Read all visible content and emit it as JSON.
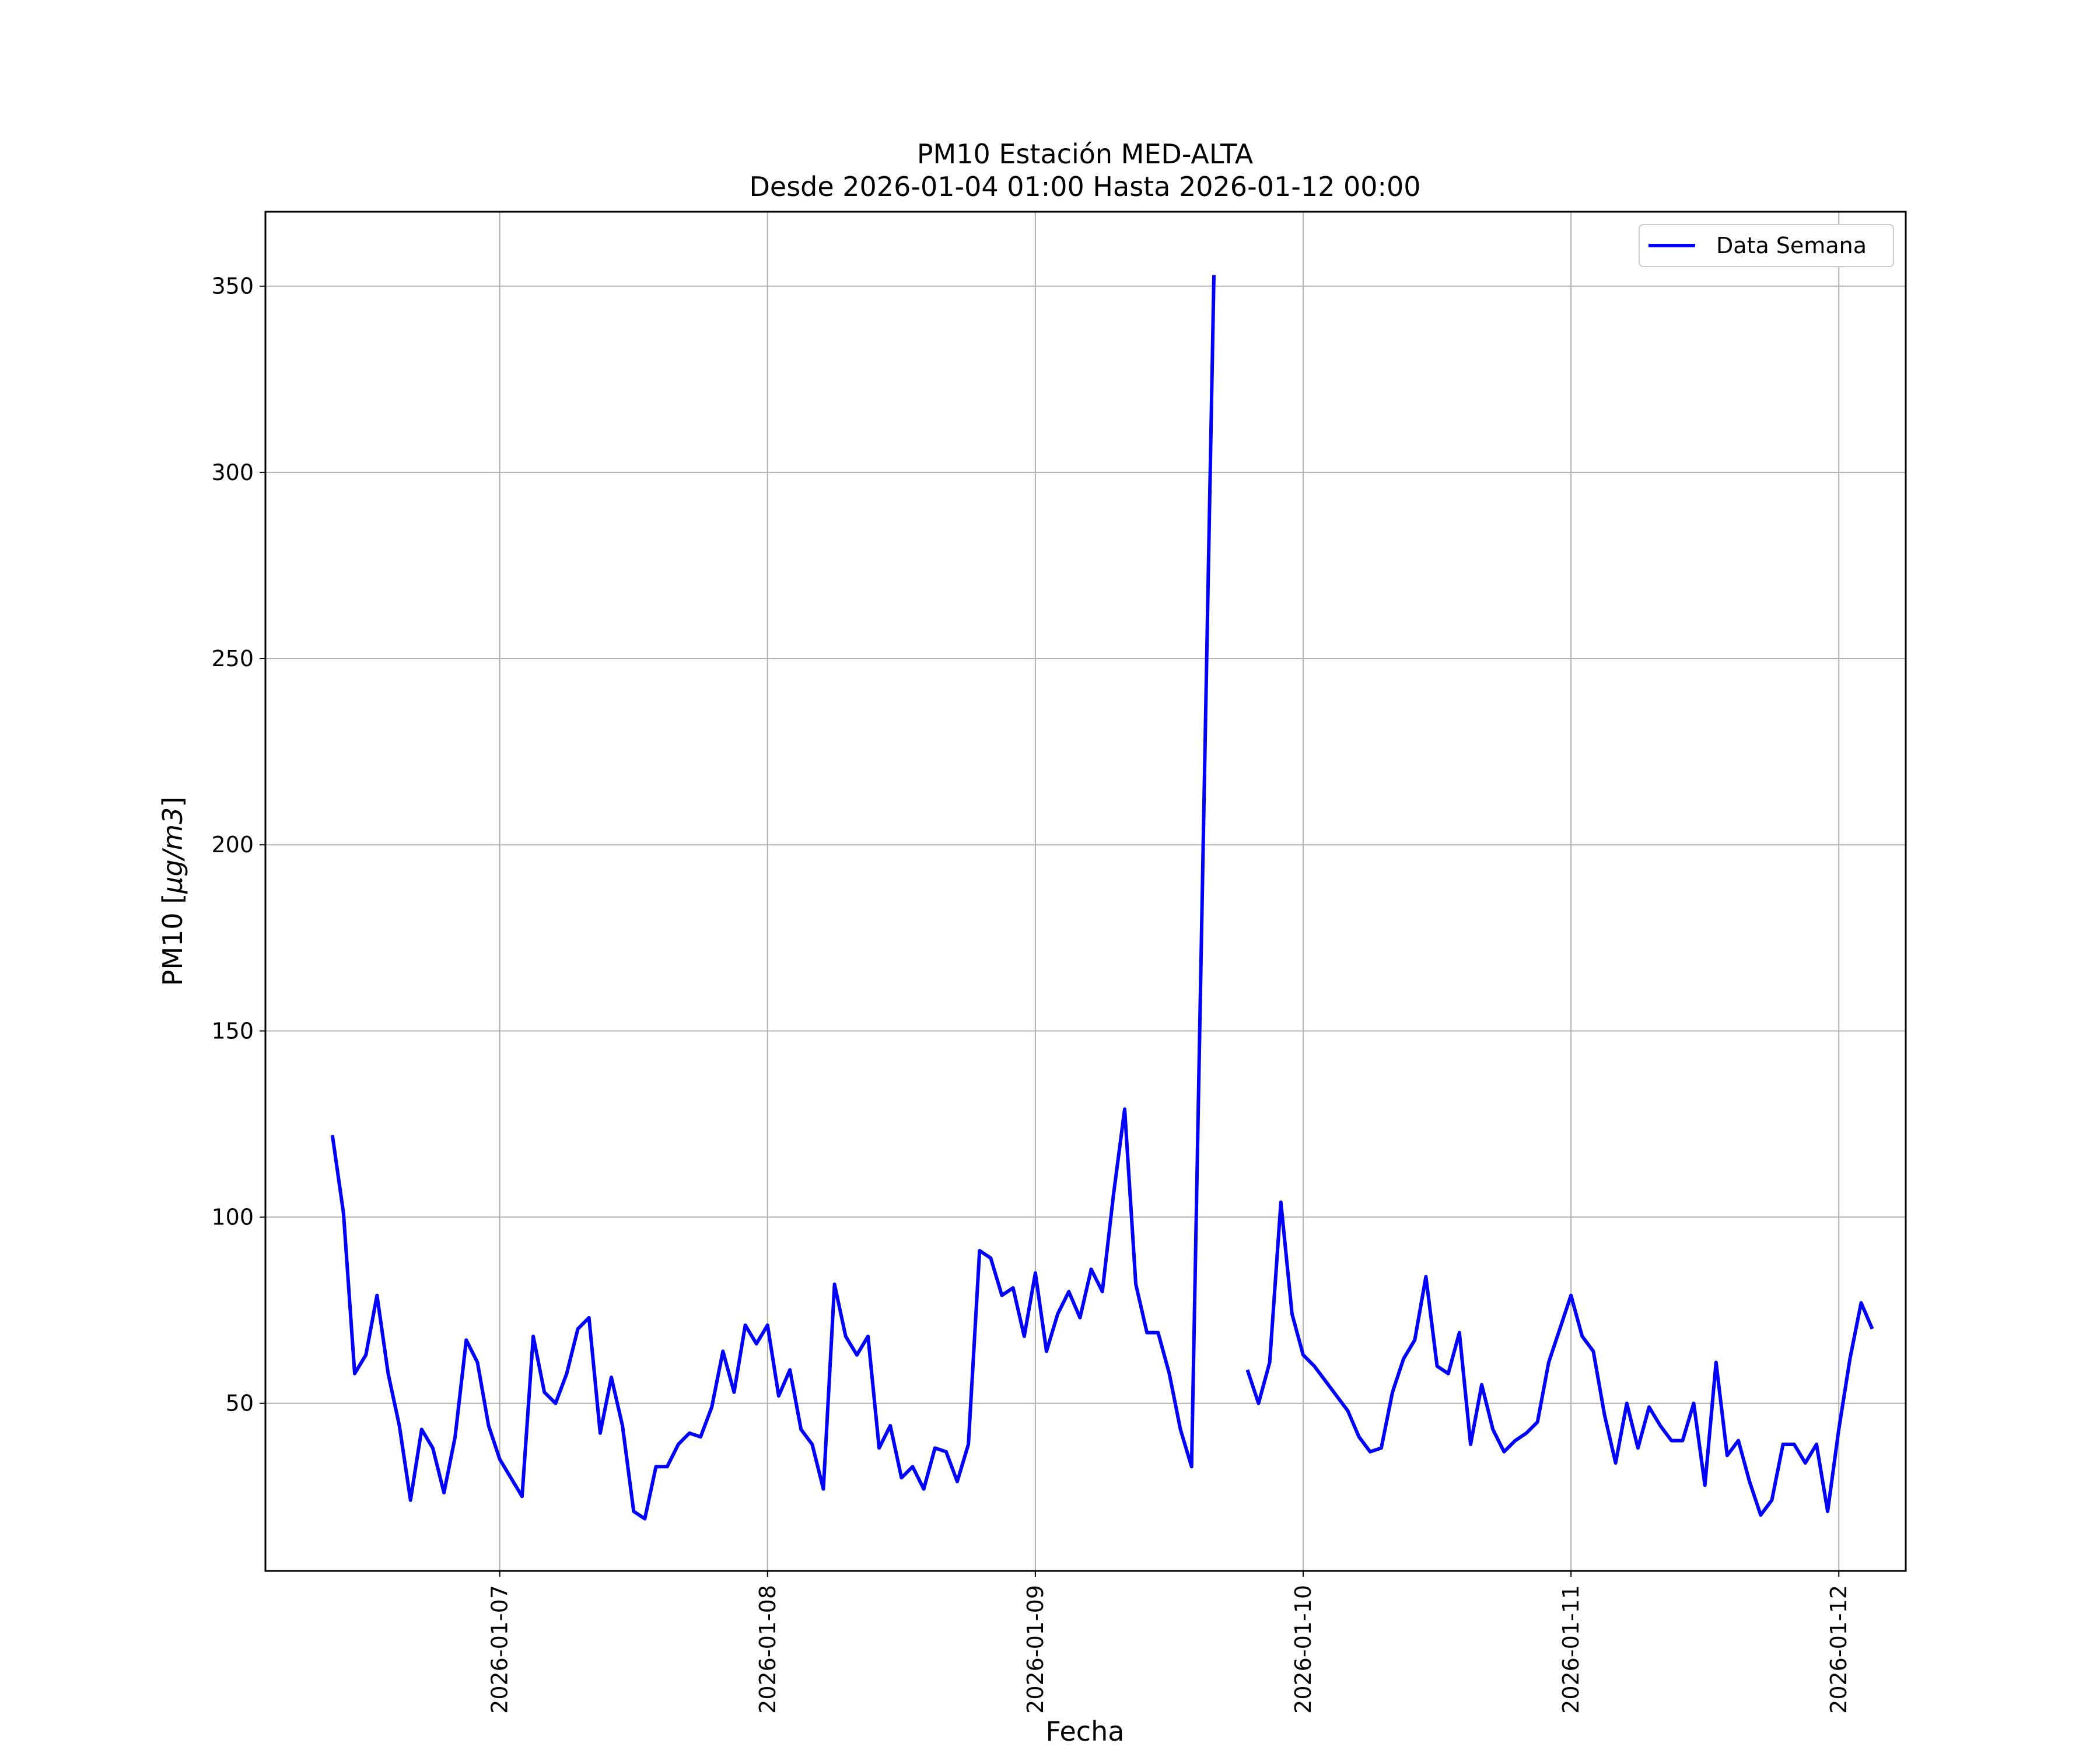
{
  "chart_data": {
    "type": "line",
    "title": "PM10 Estación MED-ALTA",
    "subtitle": "Desde 2026-01-04 01:00 Hasta 2026-01-12 00:00",
    "xlabel": "Fecha",
    "ylabel_prefix": "PM10 [",
    "ylabel_unit": "µg/m3",
    "ylabel_suffix": "]",
    "ylim": [
      5,
      370
    ],
    "yticks": [
      50,
      100,
      150,
      200,
      250,
      300,
      350
    ],
    "xlim": [
      "2026-01-06 03:00",
      "2026-01-12 06:00"
    ],
    "xticks": [
      "2026-01-07",
      "2026-01-08",
      "2026-01-09",
      "2026-01-10",
      "2026-01-11",
      "2026-01-12"
    ],
    "grid": true,
    "legend": {
      "position": "top-right",
      "entries": [
        "Data Semana"
      ]
    },
    "colors": {
      "series": "#0000ff",
      "grid": "#b0b0b0"
    },
    "series": [
      {
        "name": "Data Semana",
        "start": "2026-01-06 09:00",
        "step_hours": 1,
        "values": [
          122,
          101,
          58,
          63,
          79,
          58,
          44,
          24,
          43,
          38,
          26,
          41,
          67,
          61,
          44,
          35,
          30,
          25,
          68,
          53,
          50,
          58,
          70,
          73,
          42,
          57,
          44,
          21,
          19,
          33,
          33,
          39,
          42,
          41,
          49,
          64,
          53,
          71,
          66,
          71,
          52,
          59,
          43,
          39,
          27,
          82,
          68,
          63,
          68,
          38,
          44,
          30,
          33,
          27,
          38,
          37,
          29,
          39,
          91,
          89,
          79,
          81,
          68,
          85,
          64,
          74,
          80,
          73,
          86,
          80,
          106,
          129,
          82,
          69,
          69,
          58,
          43,
          33,
          194,
          353,
          null,
          null,
          59,
          50,
          61,
          104,
          74,
          63,
          60,
          56,
          52,
          48,
          41,
          37,
          38,
          53,
          62,
          67,
          84,
          60,
          58,
          69,
          39,
          55,
          43,
          37,
          40,
          42,
          45,
          61,
          70,
          79,
          68,
          64,
          47,
          34,
          50,
          38,
          49,
          44,
          40,
          40,
          50,
          28,
          61,
          36,
          40,
          29,
          20,
          24,
          39,
          39,
          34,
          39,
          21,
          43,
          62,
          77,
          70
        ]
      }
    ]
  }
}
